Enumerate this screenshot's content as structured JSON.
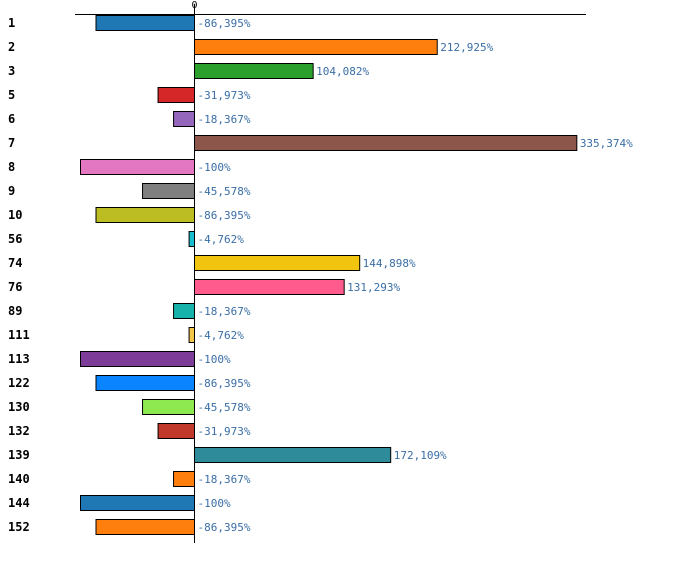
{
  "chart_data": {
    "type": "bar",
    "orientation": "horizontal",
    "title": "",
    "xlabel": "",
    "ylabel": "",
    "xlim": [
      -103.5,
      352
    ],
    "x_ticks": [
      0
    ],
    "x_tick_labels": [
      "0"
    ],
    "grid": false,
    "legend": "none",
    "categories": [
      "1",
      "2",
      "3",
      "5",
      "6",
      "7",
      "8",
      "9",
      "10",
      "56",
      "74",
      "76",
      "89",
      "111",
      "113",
      "122",
      "130",
      "132",
      "139",
      "140",
      "144",
      "152"
    ],
    "values": [
      -86.395,
      212.925,
      104.082,
      -31.973,
      -18.367,
      335.374,
      -100,
      -45.578,
      -86.395,
      -4.762,
      144.898,
      131.293,
      -18.367,
      -4.762,
      -100,
      -86.395,
      -45.578,
      -31.973,
      172.109,
      -18.367,
      -100,
      -86.395
    ],
    "value_labels": [
      "-86,395%",
      "212,925%",
      "104,082%",
      "-31,973%",
      "-18,367%",
      "335,374%",
      "-100%",
      "-45,578%",
      "-86,395%",
      "-4,762%",
      "144,898%",
      "131,293%",
      "-18,367%",
      "-4,762%",
      "-100%",
      "-86,395%",
      "-45,578%",
      "-31,973%",
      "172,109%",
      "-18,367%",
      "-100%",
      "-86,395%"
    ],
    "colors": [
      "#1f77b4",
      "#ff7f0e",
      "#2ca02c",
      "#d62728",
      "#9467bd",
      "#8c564b",
      "#e377c2",
      "#7f7f7f",
      "#bcbd22",
      "#17becf",
      "#f1c40f",
      "#ff5c8d",
      "#17b3aa",
      "#f3c64a",
      "#7d3c98",
      "#0a84ff",
      "#8ee84f",
      "#c0392b",
      "#2e8b9a",
      "#ff7f0e",
      "#1f77b4",
      "#ff7f0e"
    ]
  }
}
